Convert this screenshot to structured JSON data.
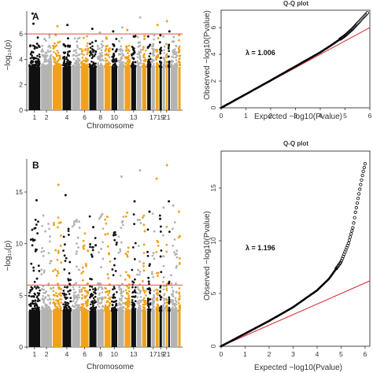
{
  "colors": {
    "black": "#111111",
    "gray": "#b3b3b3",
    "orange": "#f0a11c",
    "threshold": "#e84a4a",
    "qq_line": "#d62728",
    "qq_points": "#000000"
  },
  "chart_data": [
    {
      "id": "A",
      "type": "scatter",
      "subtype": "manhattan",
      "panel_label": "A",
      "xlabel": "Chromosome",
      "ylabel": "−log₁₀(p)",
      "ylim": [
        0,
        7.8
      ],
      "yticks": [
        0,
        2,
        4,
        6
      ],
      "xtick_labels": [
        "1",
        "2",
        "4",
        "6",
        "8",
        "10",
        "13",
        "17",
        "19",
        "21"
      ],
      "xtick_chromosomes": [
        1,
        2,
        4,
        6,
        8,
        10,
        13,
        17,
        19,
        21
      ],
      "threshold": 6,
      "chromosome_color_order": [
        "black",
        "gray",
        "orange"
      ],
      "chromosomes": 24,
      "peaks": [
        {
          "chr": 1,
          "y": 7.6
        },
        {
          "chr": 1,
          "y": 6.8
        },
        {
          "chr": 2,
          "y": 5.6
        },
        {
          "chr": 3,
          "y": 6.6
        },
        {
          "chr": 3,
          "y": 5.9
        },
        {
          "chr": 4,
          "y": 6.7
        },
        {
          "chr": 5,
          "y": 5.4
        },
        {
          "chr": 7,
          "y": 6.4
        },
        {
          "chr": 8,
          "y": 6.1
        },
        {
          "chr": 9,
          "y": 5.7
        },
        {
          "chr": 10,
          "y": 6.2
        },
        {
          "chr": 11,
          "y": 6.5
        },
        {
          "chr": 12,
          "y": 6.3
        },
        {
          "chr": 13,
          "y": 5.8
        },
        {
          "chr": 14,
          "y": 7.3
        },
        {
          "chr": 14,
          "y": 5.3
        },
        {
          "chr": 15,
          "y": 5.6
        },
        {
          "chr": 16,
          "y": 5.8
        },
        {
          "chr": 17,
          "y": 5.2
        },
        {
          "chr": 18,
          "y": 6.7
        },
        {
          "chr": 19,
          "y": 5.9
        },
        {
          "chr": 20,
          "y": 5.8
        },
        {
          "chr": 21,
          "y": 7.0
        },
        {
          "chr": 22,
          "y": 6.2
        },
        {
          "chr": 23,
          "y": 5.4
        },
        {
          "chr": 24,
          "y": 5.9
        }
      ]
    },
    {
      "id": "A-qq",
      "type": "scatter",
      "subtype": "qq",
      "title": "Q-Q plot",
      "xlabel": "Expected −log10(Pvalue)",
      "ylabel": "Observed −log10(Pvalue)",
      "xlim": [
        0,
        6
      ],
      "ylim": [
        0,
        7.3
      ],
      "xticks": [
        0,
        1,
        2,
        3,
        4,
        5,
        6
      ],
      "yticks": [
        0,
        2,
        4,
        6
      ],
      "lambda_label": "λ = 1.006",
      "lambda": 1.006,
      "reference_line_slope": 1,
      "reference_line_end": [
        6,
        6
      ],
      "observed_curve": [
        [
          0,
          0
        ],
        [
          1,
          1.02
        ],
        [
          2,
          2.05
        ],
        [
          3,
          3.1
        ],
        [
          4,
          4.15
        ],
        [
          4.5,
          4.75
        ],
        [
          5,
          5.4
        ],
        [
          5.3,
          5.9
        ],
        [
          5.6,
          6.5
        ],
        [
          5.9,
          7.1
        ]
      ]
    },
    {
      "id": "B",
      "type": "scatter",
      "subtype": "manhattan",
      "panel_label": "B",
      "xlabel": "Chromosome",
      "ylabel": "−log₁₀(p)",
      "ylim": [
        0,
        18.2
      ],
      "yticks": [
        0,
        5,
        10,
        15
      ],
      "xtick_labels": [
        "1",
        "2",
        "4",
        "6",
        "8",
        "10",
        "13",
        "17",
        "19",
        "21"
      ],
      "xtick_chromosomes": [
        1,
        2,
        4,
        6,
        8,
        10,
        13,
        17,
        19,
        21
      ],
      "threshold": 6,
      "chromosome_color_order": [
        "black",
        "gray",
        "orange"
      ],
      "chromosomes": 24,
      "peaks": [
        {
          "chr": 1,
          "y": 14.2
        },
        {
          "chr": 1,
          "y": 10.3
        },
        {
          "chr": 2,
          "y": 11.2
        },
        {
          "chr": 3,
          "y": 15.7
        },
        {
          "chr": 3,
          "y": 12.0
        },
        {
          "chr": 4,
          "y": 14.7
        },
        {
          "chr": 5,
          "y": 12.3
        },
        {
          "chr": 6,
          "y": 9.8
        },
        {
          "chr": 7,
          "y": 11.6
        },
        {
          "chr": 8,
          "y": 9.5
        },
        {
          "chr": 9,
          "y": 12.6
        },
        {
          "chr": 10,
          "y": 11.1
        },
        {
          "chr": 11,
          "y": 16.5
        },
        {
          "chr": 12,
          "y": 13.0
        },
        {
          "chr": 13,
          "y": 14.1
        },
        {
          "chr": 14,
          "y": 17.1
        },
        {
          "chr": 14,
          "y": 12.3
        },
        {
          "chr": 15,
          "y": 11.2
        },
        {
          "chr": 16,
          "y": 13.1
        },
        {
          "chr": 17,
          "y": 9.1
        },
        {
          "chr": 18,
          "y": 16.3
        },
        {
          "chr": 19,
          "y": 12.4
        },
        {
          "chr": 20,
          "y": 13.5
        },
        {
          "chr": 21,
          "y": 17.6
        },
        {
          "chr": 22,
          "y": 14.1
        },
        {
          "chr": 23,
          "y": 13.7
        },
        {
          "chr": 24,
          "y": 13.1
        }
      ]
    },
    {
      "id": "B-qq",
      "type": "scatter",
      "subtype": "qq",
      "title": "Q-Q plot",
      "xlabel": "Expected −log10(Pvalue)",
      "ylabel": "Observed −log10(Pvalue)",
      "xlim": [
        0,
        6.2
      ],
      "ylim": [
        0,
        18.5
      ],
      "xticks": [
        0,
        1,
        2,
        3,
        4,
        5,
        6
      ],
      "yticks": [
        0,
        5,
        10,
        15
      ],
      "lambda_label": "λ = 1.196",
      "lambda": 1.196,
      "reference_line_slope": 1,
      "reference_line_end": [
        6.2,
        6.2
      ],
      "observed_curve": [
        [
          0,
          0
        ],
        [
          1,
          1.2
        ],
        [
          2,
          2.4
        ],
        [
          3,
          3.7
        ],
        [
          4,
          5.3
        ],
        [
          4.5,
          6.4
        ],
        [
          5,
          8.0
        ],
        [
          5.3,
          9.7
        ],
        [
          5.5,
          11.3
        ],
        [
          5.6,
          12.7
        ],
        [
          5.75,
          14.5
        ],
        [
          5.9,
          16.3
        ],
        [
          6.0,
          17.3
        ]
      ]
    }
  ]
}
